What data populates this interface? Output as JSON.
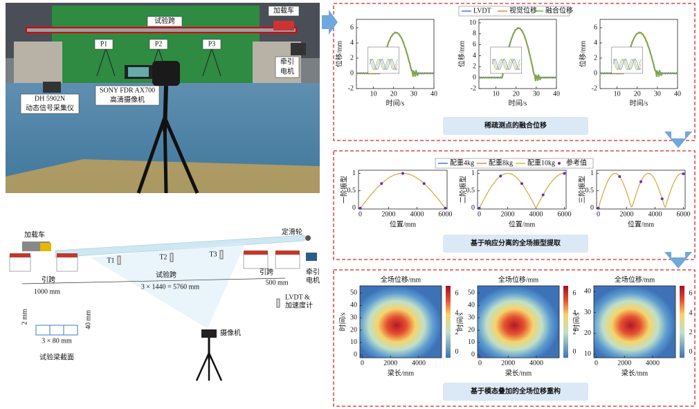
{
  "photo": {
    "span": "试验跨",
    "truck": "加载车",
    "points": [
      "P1",
      "P2",
      "P3"
    ],
    "motor": [
      "牵引",
      "电机"
    ],
    "daq": [
      "DH 5902N",
      "动态信号采集仪"
    ],
    "camera": [
      "SONY FDR AX700",
      "高清摄像机"
    ]
  },
  "schematic": {
    "truck": "加载车",
    "pulley": "定滑轮",
    "targets": [
      "T1",
      "T2",
      "T3"
    ],
    "approach_left": "引跨",
    "test_span": "试验跨",
    "approach_right": "引跨",
    "dim_left": "1000 mm",
    "dim_span": "3 × 1440 = 5760 mm",
    "dim_right": "500 mm",
    "motor": [
      "牵引",
      "电机"
    ],
    "sensor": [
      "LVDT &",
      "加速度计"
    ],
    "camera": "摄像机",
    "section": {
      "height": "40 mm",
      "flange": "2 mm",
      "width": "3 × 80 mm",
      "caption": "试验梁截面"
    }
  },
  "panels": [
    {
      "caption": "稀疏测点的融合位移",
      "legend": [
        "LVDT",
        "视觉位移",
        "融合位移"
      ],
      "plots": [
        {
          "ylabel": "位移/mm",
          "xlabel": "时间/s",
          "xticks": [
            10,
            20,
            30,
            40
          ],
          "yticks": [
            -2,
            0,
            2,
            4,
            6
          ]
        },
        {
          "ylabel": "位移/mm",
          "xlabel": "时间/s",
          "xticks": [
            10,
            20,
            30,
            40
          ],
          "yticks": [
            -2,
            0,
            2,
            4,
            6,
            8,
            10
          ]
        },
        {
          "ylabel": "位移/mm",
          "xlabel": "时间/s",
          "xticks": [
            10,
            20,
            30,
            40
          ],
          "yticks": [
            -2,
            0,
            2,
            4,
            6
          ]
        }
      ]
    },
    {
      "caption": "基于响应分离的全场振型提取",
      "legend": [
        "配重4kg",
        "配重8kg",
        "配重10kg",
        "参考值"
      ],
      "plots": [
        {
          "ylabel": "一阶振型",
          "xlabel": "位置/mm",
          "xticks": [
            0,
            2000,
            4000,
            6000
          ],
          "yticks": [
            0,
            0.5,
            1
          ]
        },
        {
          "ylabel": "二阶振型",
          "xlabel": "位置/mm",
          "xticks": [
            0,
            2000,
            4000,
            6000
          ],
          "yticks": [
            0,
            0.5,
            1
          ]
        },
        {
          "ylabel": "三阶振型",
          "xlabel": "位置/mm",
          "xticks": [
            0,
            2000,
            4000,
            6000
          ],
          "yticks": [
            0,
            0.5,
            1
          ]
        }
      ]
    },
    {
      "caption": "基于模态叠加的全场位移重构",
      "plots": [
        {
          "title": "全场位移/mm",
          "ylabel": "时间/s",
          "xlabel": "梁长/mm",
          "xticks": [
            0,
            2000,
            4000
          ],
          "yticks": [
            0,
            10,
            20,
            30,
            40,
            50
          ],
          "cbticks": [
            0,
            2,
            4,
            6
          ]
        },
        {
          "title": "全场位移/mm",
          "ylabel": "时间/s",
          "xlabel": "梁长/mm",
          "xticks": [
            0,
            2000,
            4000
          ],
          "yticks": [
            0,
            10,
            20,
            30,
            40,
            50
          ],
          "cbticks": [
            0,
            2,
            4,
            6
          ]
        },
        {
          "title": "全场位移/mm",
          "ylabel": "时间/s",
          "xlabel": "梁长/mm",
          "xticks": [
            0,
            2000,
            4000
          ],
          "yticks": [
            10,
            20,
            30,
            40
          ],
          "cbticks": [
            0,
            2,
            4,
            6
          ]
        }
      ]
    }
  ]
}
